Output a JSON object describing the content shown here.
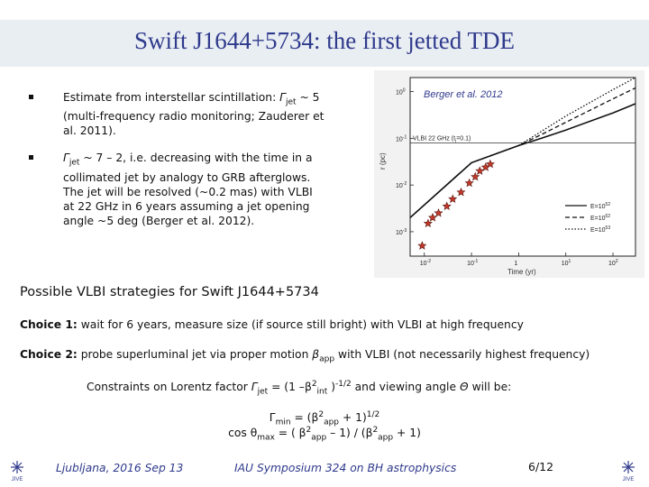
{
  "slide": {
    "title": "Swift J1644+5734: the first jetted TDE"
  },
  "bullets": [
    {
      "pre": "Estimate from interstellar scintillation: ",
      "sym": "Γ",
      "sub": "jet",
      "post": " ~ 5 (multi-frequency radio monitoring; Zauderer et al. 2011)."
    },
    {
      "sym": "Γ",
      "sub": "jet",
      "post": " ~ 7 – 2, i.e. decreasing with the time in a collimated jet by analogy to GRB afterglows. The jet will be resolved (~0.2 mas) with VLBI at 22 GHz  in 6 years assuming a jet opening angle ~5 deg (Berger et al. 2012)."
    }
  ],
  "figure": {
    "credit": "Berger et al. 2012",
    "vlbi_label": "VLBI 22 GHz (t",
    "vlbi_label_sub": "j",
    "vlbi_label_end": "=0.1)",
    "ylabel": "r (pc)",
    "xlabel": "Time (yr)",
    "y_ticks": [
      "10",
      "10",
      "10",
      "10"
    ],
    "y_tick_exp": [
      "0",
      "-1",
      "-2",
      "-3"
    ],
    "x_ticks": [
      "10",
      "10",
      "1",
      "10",
      "10"
    ],
    "x_tick_exp": [
      "-2",
      "-1",
      "",
      "1",
      "2"
    ],
    "legend": [
      {
        "label": "E=10",
        "exp": "52",
        "style": "solid"
      },
      {
        "label": "E=10",
        "exp": "52",
        "style": "dashed"
      },
      {
        "label": "E=10",
        "exp": "53",
        "style": "dotted"
      }
    ]
  },
  "chart_data": {
    "type": "line",
    "title": "",
    "xlabel": "Time (yr)",
    "ylabel": "r (pc)",
    "xscale": "log",
    "yscale": "log",
    "xlim": [
      0.005,
      300
    ],
    "ylim": [
      0.0003,
      2
    ],
    "series": [
      {
        "name": "E=10^52",
        "x": [
          0.005,
          0.1,
          1,
          3,
          10,
          100,
          300
        ],
        "y": [
          0.002,
          0.03,
          0.07,
          0.1,
          0.15,
          0.35,
          0.55
        ]
      },
      {
        "name": "E=10^52 dashed",
        "x": [
          0.005,
          0.1,
          1,
          3,
          10,
          100,
          300
        ],
        "y": [
          0.002,
          0.03,
          0.07,
          0.12,
          0.22,
          0.7,
          1.2
        ]
      },
      {
        "name": "E=10^53",
        "x": [
          0.005,
          0.1,
          1,
          3,
          10,
          100,
          300
        ],
        "y": [
          0.002,
          0.03,
          0.07,
          0.14,
          0.3,
          1.1,
          2.0
        ]
      }
    ],
    "points": {
      "x": [
        0.009,
        0.012,
        0.015,
        0.02,
        0.03,
        0.04,
        0.06,
        0.09,
        0.12,
        0.15,
        0.2,
        0.25
      ],
      "y": [
        0.0005,
        0.0015,
        0.002,
        0.0025,
        0.0035,
        0.005,
        0.007,
        0.011,
        0.015,
        0.02,
        0.024,
        0.028
      ]
    },
    "threshold": {
      "label": "VLBI 22 GHz (tj=0.1)",
      "y": 0.08
    }
  },
  "strategies": {
    "heading": "Possible VLBI strategies for Swift J1644+5734",
    "choice1_label": "Choice 1:",
    "choice1_text": " wait for 6 years, measure size (if source still bright) with VLBI at high frequency",
    "choice2_label": "Choice 2:",
    "choice2_text_a": " probe superluminal jet via proper motion ",
    "choice2_beta": "β",
    "choice2_sub": "app",
    "choice2_text_b": " with VLBI (not necessarily highest frequency)",
    "constraints_a": "Constraints on Lorentz factor ",
    "constraints_sym": "Γ",
    "constraints_sub": "jet",
    "constraints_b": " = (1 –β",
    "constraints_sup2": "2",
    "constraints_sub2": "int",
    "constraints_c": " )",
    "constraints_sup3": "-1/2",
    "constraints_d": "  and viewing angle ",
    "constraints_theta": "Θ",
    "constraints_e": " will be:",
    "eq1_a": "Γ",
    "eq1_sub": "min",
    "eq1_b": " = (β",
    "eq1_sup": "2",
    "eq1_sub2": "app",
    "eq1_c": " + 1)",
    "eq1_sup2": "1/2",
    "eq2_a": "cos θ",
    "eq2_sub": "max",
    "eq2_b": " = ( β",
    "eq2_sup": "2",
    "eq2_sub2": "app",
    "eq2_c": " – 1) / (β",
    "eq2_sup3": "2",
    "eq2_sub3": "app",
    "eq2_d": " + 1)"
  },
  "footer": {
    "left": "Ljubljana, 2016 Sep 13",
    "center": "IAU Symposium 324 on BH astrophysics",
    "page": "6/12"
  }
}
